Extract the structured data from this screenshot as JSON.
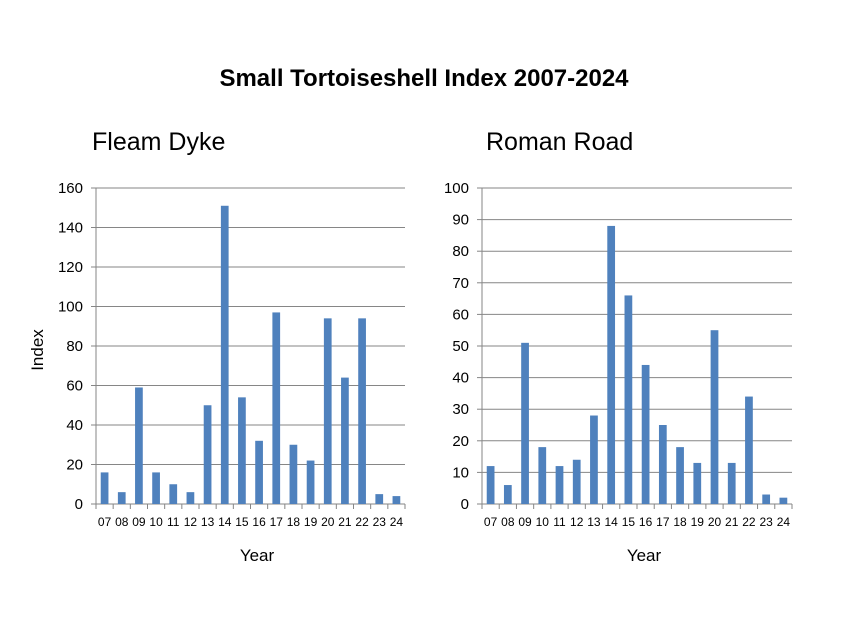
{
  "title": "Small Tortoiseshell Index 2007-2024",
  "bar_color": "#4f81bd",
  "chart_data": [
    {
      "type": "bar",
      "title": "Fleam Dyke",
      "xlabel": "Year",
      "ylabel": "Index",
      "ylim": [
        0,
        160
      ],
      "yticks": [
        0,
        20,
        40,
        60,
        80,
        100,
        120,
        140,
        160
      ],
      "grid": true,
      "categories": [
        "07",
        "08",
        "09",
        "10",
        "11",
        "12",
        "13",
        "14",
        "15",
        "16",
        "17",
        "18",
        "19",
        "20",
        "21",
        "22",
        "23",
        "24"
      ],
      "values": [
        16,
        6,
        59,
        16,
        10,
        6,
        50,
        151,
        54,
        32,
        97,
        30,
        22,
        94,
        64,
        94,
        5,
        4
      ]
    },
    {
      "type": "bar",
      "title": "Roman Road",
      "xlabel": "Year",
      "ylabel": "",
      "ylim": [
        0,
        100
      ],
      "yticks": [
        0,
        10,
        20,
        30,
        40,
        50,
        60,
        70,
        80,
        90,
        100
      ],
      "grid": true,
      "categories": [
        "07",
        "08",
        "09",
        "10",
        "11",
        "12",
        "13",
        "14",
        "15",
        "16",
        "17",
        "18",
        "19",
        "20",
        "21",
        "22",
        "23",
        "24"
      ],
      "values": [
        12,
        6,
        51,
        18,
        12,
        14,
        28,
        88,
        66,
        44,
        25,
        18,
        13,
        55,
        13,
        34,
        3,
        2
      ]
    }
  ]
}
